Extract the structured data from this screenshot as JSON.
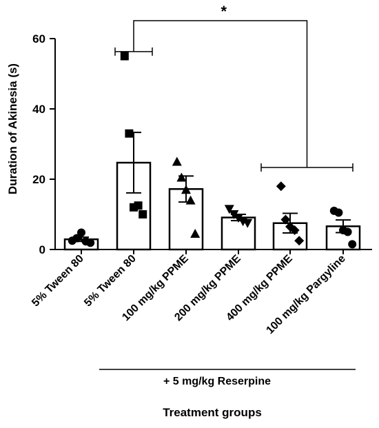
{
  "chart_data": {
    "type": "bar",
    "ylabel": "Duration of Akinesia (s)",
    "xlabel": "Treatment groups",
    "ylim": [
      0,
      60
    ],
    "yticks": [
      0,
      20,
      40,
      60
    ],
    "categories": [
      "5% Tween 80",
      "5% Tween 80",
      "100 mg/kg PPME",
      "200 mg/kg PPME",
      "400 mg/kg PPME",
      "100 mg/kg Pargyline"
    ],
    "values": [
      2.9,
      24.7,
      17.2,
      9.1,
      7.5,
      6.6
    ],
    "sem": [
      0.6,
      8.6,
      3.7,
      0.9,
      2.8,
      1.8
    ],
    "markers": [
      "circle",
      "square",
      "triangle",
      "triangle-down",
      "diamond",
      "circle"
    ],
    "points": [
      [
        2.5,
        3.2,
        4.8,
        2.3,
        1.9
      ],
      [
        55,
        33,
        12,
        12.5,
        10
      ],
      [
        25,
        20.5,
        17,
        14,
        4.5
      ],
      [
        11.5,
        10,
        9,
        8,
        7.5
      ],
      [
        18,
        8.5,
        6.5,
        5.5,
        2.5
      ],
      [
        11,
        10.5,
        5.5,
        5,
        1.5
      ]
    ],
    "group_label": "+ 5 mg/kg Reserpine",
    "group_categories": [
      1,
      2,
      3,
      4,
      5
    ],
    "significance": {
      "symbol": "*",
      "from": 1,
      "to_range": [
        4,
        5
      ]
    },
    "grid": false
  }
}
